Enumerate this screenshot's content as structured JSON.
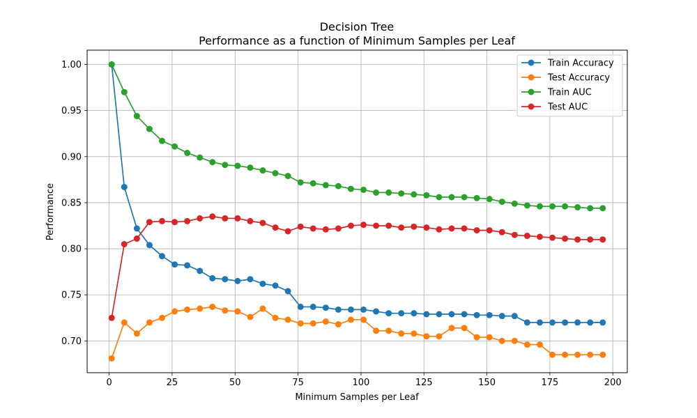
{
  "chart_data": {
    "type": "line",
    "title": "Decision Tree",
    "subtitle": "Performance as a function of Minimum Samples per Leaf",
    "xlabel": "Minimum Samples per Leaf",
    "ylabel": "Performance",
    "xlim": [
      -8.75,
      205.75
    ],
    "ylim": [
      0.6655,
      1.0155
    ],
    "xticks": [
      0,
      25,
      50,
      75,
      100,
      125,
      150,
      175,
      200
    ],
    "yticks": [
      0.7,
      0.75,
      0.8,
      0.85,
      0.9,
      0.95,
      1.0
    ],
    "grid": true,
    "legend_position": "top-right",
    "x": [
      1,
      6,
      11,
      16,
      21,
      26,
      31,
      36,
      41,
      46,
      51,
      56,
      61,
      66,
      71,
      76,
      81,
      86,
      91,
      96,
      101,
      106,
      111,
      116,
      121,
      126,
      131,
      136,
      141,
      146,
      151,
      156,
      161,
      166,
      171,
      176,
      181,
      186,
      191,
      196
    ],
    "series": [
      {
        "name": "Train Accuracy",
        "color": "#1f77b4",
        "values": [
          1.0,
          0.867,
          0.822,
          0.804,
          0.792,
          0.783,
          0.782,
          0.776,
          0.768,
          0.767,
          0.765,
          0.767,
          0.762,
          0.76,
          0.754,
          0.737,
          0.737,
          0.736,
          0.734,
          0.734,
          0.734,
          0.732,
          0.73,
          0.73,
          0.73,
          0.729,
          0.729,
          0.729,
          0.729,
          0.728,
          0.728,
          0.727,
          0.727,
          0.72,
          0.72,
          0.72,
          0.72,
          0.72,
          0.72,
          0.72
        ]
      },
      {
        "name": "Test Accuracy",
        "color": "#ff7f0e",
        "values": [
          0.681,
          0.72,
          0.708,
          0.72,
          0.725,
          0.732,
          0.734,
          0.735,
          0.737,
          0.733,
          0.732,
          0.726,
          0.735,
          0.725,
          0.723,
          0.719,
          0.719,
          0.721,
          0.718,
          0.723,
          0.723,
          0.711,
          0.711,
          0.708,
          0.708,
          0.705,
          0.705,
          0.714,
          0.714,
          0.704,
          0.704,
          0.7,
          0.7,
          0.696,
          0.696,
          0.685,
          0.685,
          0.685,
          0.685,
          0.685
        ]
      },
      {
        "name": "Train AUC",
        "color": "#2ca02c",
        "values": [
          1.0,
          0.97,
          0.944,
          0.93,
          0.917,
          0.911,
          0.904,
          0.899,
          0.894,
          0.891,
          0.89,
          0.888,
          0.885,
          0.882,
          0.879,
          0.872,
          0.871,
          0.869,
          0.868,
          0.865,
          0.864,
          0.861,
          0.861,
          0.86,
          0.859,
          0.858,
          0.856,
          0.856,
          0.856,
          0.855,
          0.854,
          0.851,
          0.849,
          0.847,
          0.846,
          0.846,
          0.846,
          0.845,
          0.844,
          0.844
        ]
      },
      {
        "name": "Test AUC",
        "color": "#d62728",
        "values": [
          0.725,
          0.805,
          0.811,
          0.829,
          0.83,
          0.829,
          0.83,
          0.833,
          0.835,
          0.833,
          0.833,
          0.83,
          0.828,
          0.823,
          0.819,
          0.824,
          0.822,
          0.821,
          0.822,
          0.825,
          0.826,
          0.825,
          0.825,
          0.823,
          0.824,
          0.823,
          0.821,
          0.822,
          0.822,
          0.82,
          0.82,
          0.818,
          0.815,
          0.814,
          0.813,
          0.812,
          0.811,
          0.81,
          0.81,
          0.81
        ]
      }
    ]
  }
}
